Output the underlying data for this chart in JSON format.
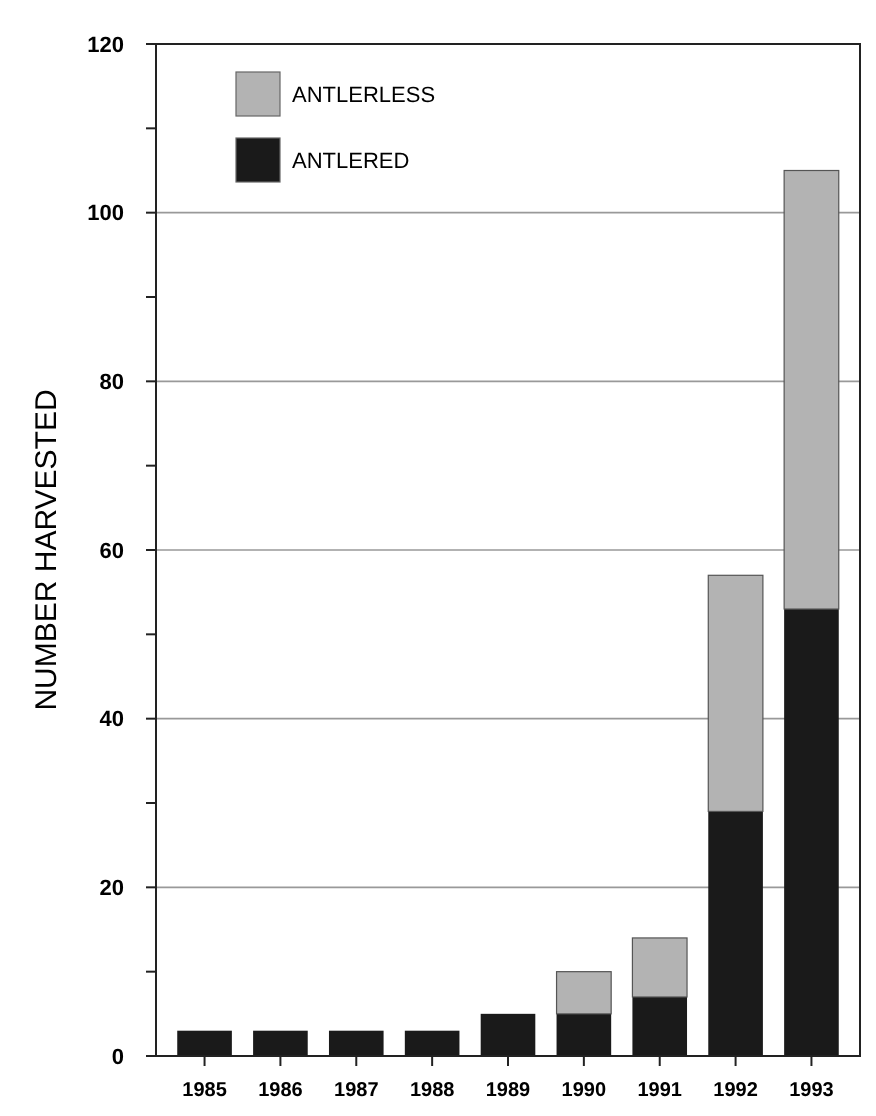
{
  "chart_data": {
    "type": "bar",
    "ylabel": "NUMBER HARVESTED",
    "categories": [
      "1985",
      "1986",
      "1987",
      "1988",
      "1989",
      "1990",
      "1991",
      "1992",
      "1993"
    ],
    "stacked": true,
    "series": [
      {
        "name": "ANTLERED",
        "color": "#1a1a1a",
        "values": [
          3,
          3,
          3,
          3,
          5,
          5,
          7,
          29,
          53
        ]
      },
      {
        "name": "ANTLERLESS",
        "color": "#b3b3b3",
        "values": [
          0,
          0,
          0,
          0,
          0,
          5,
          7,
          28,
          52
        ]
      }
    ],
    "ylim": [
      0,
      120
    ],
    "yticks": [
      0,
      {
        "value": 10,
        "label": null
      },
      20,
      {
        "value": 30,
        "label": null
      },
      40,
      {
        "value": 50,
        "label": null
      },
      60,
      {
        "value": 70,
        "label": null
      },
      80,
      {
        "value": 90,
        "label": null
      },
      100,
      {
        "value": 110,
        "label": null
      },
      120
    ],
    "grid": "y",
    "legend": "top left"
  }
}
